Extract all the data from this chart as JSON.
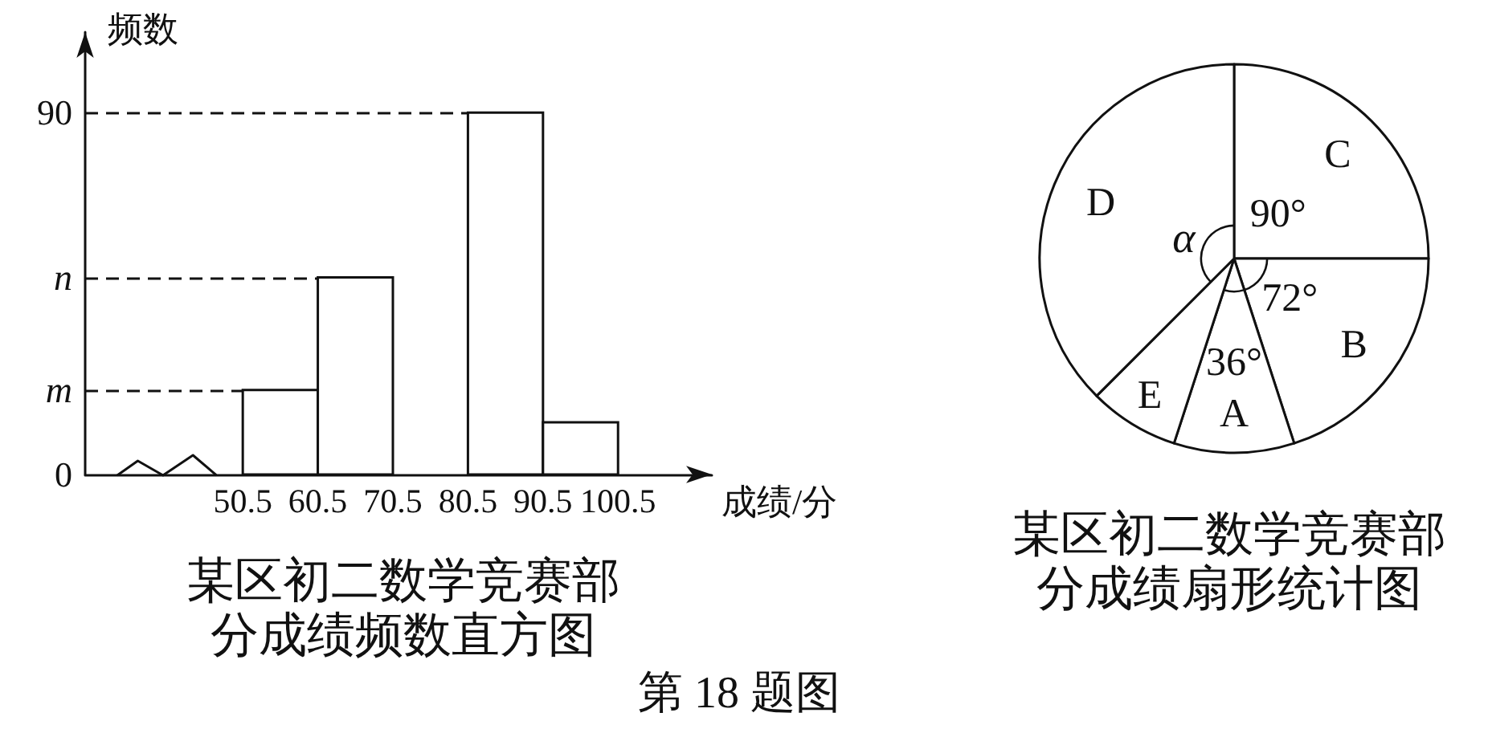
{
  "chart_data": [
    {
      "type": "histogram",
      "title": "某区初二数学竞赛部分成绩频数直方图",
      "xlabel": "成绩/分",
      "ylabel": "频数",
      "bins": [
        50.5,
        60.5,
        70.5,
        80.5,
        90.5,
        100.5
      ],
      "values": [
        21,
        49,
        null,
        90,
        13
      ],
      "xlim": [
        29.5,
        113
      ],
      "ylim": [
        0,
        110
      ],
      "xticks": [
        50.5,
        60.5,
        70.5,
        80.5,
        90.5,
        100.5
      ],
      "yticks": [
        0,
        {
          "value": 21,
          "label": "m"
        },
        {
          "value": 49,
          "label": "n"
        },
        90
      ],
      "ref_lines": [
        {
          "axis": "y",
          "value": 21,
          "line_style": "dashed"
        },
        {
          "axis": "y",
          "value": 49,
          "line_style": "dashed"
        },
        {
          "axis": "y",
          "value": 90,
          "line_style": "dashed"
        }
      ],
      "annotations": [
        "第 18 题图"
      ]
    },
    {
      "type": "pie",
      "title": "某区初二数学竞赛部分成绩扇形统计图",
      "categories": [
        "C",
        "B",
        "A",
        "E",
        "D"
      ],
      "values": [
        90,
        72,
        36,
        27,
        135
      ],
      "value_labels": [
        "90°",
        "72°",
        "36°",
        null,
        "α"
      ]
    }
  ]
}
